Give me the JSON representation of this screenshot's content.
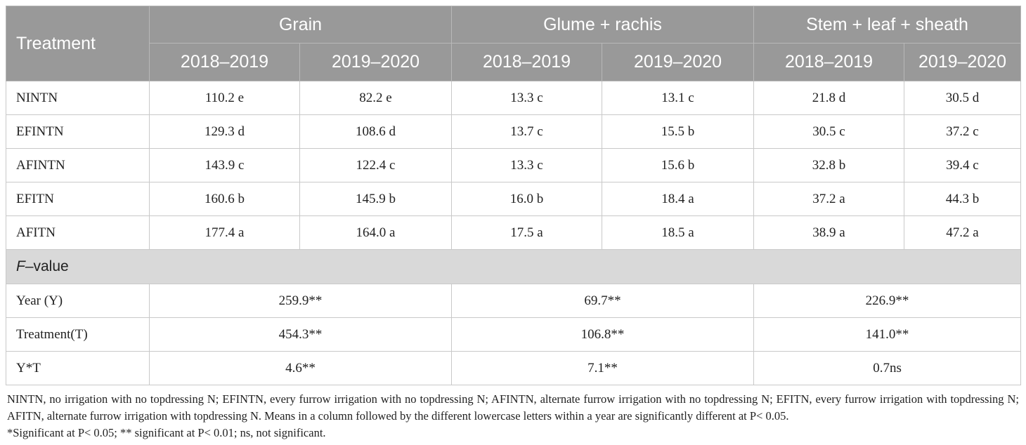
{
  "table": {
    "header": {
      "treatment": "Treatment",
      "groups": [
        "Grain",
        "Glume + rachis",
        "Stem + leaf + sheath"
      ],
      "years": [
        "2018–2019",
        "2019–2020",
        "2018–2019",
        "2019–2020",
        "2018–2019",
        "2019–2020"
      ]
    },
    "rows": [
      {
        "label": "NINTN",
        "values": [
          "110.2 e",
          "82.2 e",
          "13.3 c",
          "13.1 c",
          "21.8 d",
          "30.5 d"
        ]
      },
      {
        "label": "EFINTN",
        "values": [
          "129.3 d",
          "108.6 d",
          "13.7 c",
          "15.5 b",
          "30.5 c",
          "37.2 c"
        ]
      },
      {
        "label": "AFINTN",
        "values": [
          "143.9 c",
          "122.4 c",
          "13.3 c",
          "15.6 b",
          "32.8 b",
          "39.4 c"
        ]
      },
      {
        "label": "EFITN",
        "values": [
          "160.6 b",
          "145.9 b",
          "16.0 b",
          "18.4 a",
          "37.2 a",
          "44.3 b"
        ]
      },
      {
        "label": "AFITN",
        "values": [
          "177.4 a",
          "164.0 a",
          "17.5 a",
          "18.5 a",
          "38.9 a",
          "47.2 a"
        ]
      }
    ],
    "section": {
      "italic": "F",
      "rest": "–value"
    },
    "frows": [
      {
        "label": "Year (Y)",
        "values": [
          "259.9**",
          "69.7**",
          "226.9**"
        ]
      },
      {
        "label": "Treatment(T)",
        "values": [
          "454.3**",
          "106.8**",
          "141.0**"
        ]
      },
      {
        "label": "Y*T",
        "values": [
          "4.6**",
          "7.1**",
          "0.7ns"
        ]
      }
    ]
  },
  "footnote": {
    "line1": "NINTN, no irrigation with no topdressing N; EFINTN, every furrow irrigation with no topdressing N; AFINTN, alternate furrow irrigation with no topdressing N; EFITN, every furrow irrigation with topdressing N; AFITN, alternate furrow irrigation with topdressing N. Means in a column followed by the different lowercase letters within a year are significantly different at P< 0.05.",
    "line2": "*Significant at P< 0.05; ** significant at P< 0.01; ns, not significant."
  }
}
